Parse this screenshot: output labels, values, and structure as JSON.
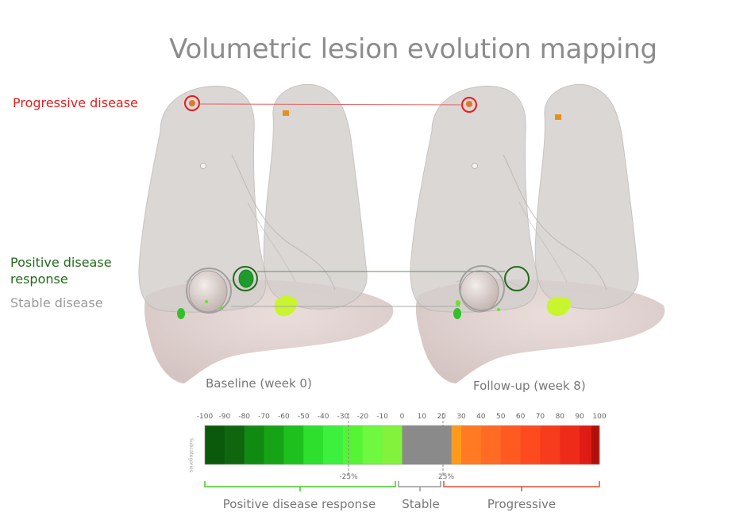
{
  "title": "Volumetric lesion evolution mapping",
  "labels": {
    "progressive": "Progressive disease",
    "positive_line1": "Positive disease",
    "positive_line2": "response",
    "stable": "Stable disease"
  },
  "captions": {
    "baseline": "Baseline (week 0)",
    "followup": "Follow-up (week 8)"
  },
  "scale": {
    "vertical_label": "Subcategories",
    "ticks": [
      "-100",
      "-90",
      "-80",
      "-70",
      "-60",
      "-50",
      "-40",
      "-30",
      "-20",
      "-10",
      "0",
      "10",
      "20",
      "30",
      "40",
      "50",
      "60",
      "70",
      "80",
      "90",
      "100"
    ],
    "markers": [
      "-25%",
      "25%"
    ],
    "categories": [
      "Positive disease response",
      "Stable",
      "Progressive"
    ]
  },
  "colors": {
    "progressive": "#e41d1d",
    "positive": "#236b1d",
    "stable": "#9a9a9a",
    "positive_bracket": "#44cc22",
    "progressive_bracket": "#e05030",
    "stable_bracket": "#999999"
  },
  "scale_segments": [
    {
      "from": -100,
      "to": -90,
      "color": "#0b5a0b"
    },
    {
      "from": -90,
      "to": -80,
      "color": "#0f660f"
    },
    {
      "from": -80,
      "to": -70,
      "color": "#118a11"
    },
    {
      "from": -70,
      "to": -60,
      "color": "#16a416"
    },
    {
      "from": -60,
      "to": -50,
      "color": "#1dc01d"
    },
    {
      "from": -50,
      "to": -40,
      "color": "#2ee02e"
    },
    {
      "from": -40,
      "to": -30,
      "color": "#3ef03e"
    },
    {
      "from": -30,
      "to": -20,
      "color": "#55f535"
    },
    {
      "from": -20,
      "to": -10,
      "color": "#6ef83f"
    },
    {
      "from": -10,
      "to": 0,
      "color": "#82f23c"
    },
    {
      "from": 0,
      "to": 25,
      "color": "#8a8a8a"
    },
    {
      "from": 25,
      "to": 30,
      "color": "#ff9a1c"
    },
    {
      "from": 30,
      "to": 40,
      "color": "#ff7a22"
    },
    {
      "from": 40,
      "to": 50,
      "color": "#ff6b24"
    },
    {
      "from": 50,
      "to": 60,
      "color": "#ff5a22"
    },
    {
      "from": 60,
      "to": 70,
      "color": "#ff4a20"
    },
    {
      "from": 70,
      "to": 80,
      "color": "#f63c1c"
    },
    {
      "from": 80,
      "to": 90,
      "color": "#ee2b18"
    },
    {
      "from": 90,
      "to": 96,
      "color": "#e01a14"
    },
    {
      "from": 96,
      "to": 100,
      "color": "#b0100c"
    }
  ]
}
